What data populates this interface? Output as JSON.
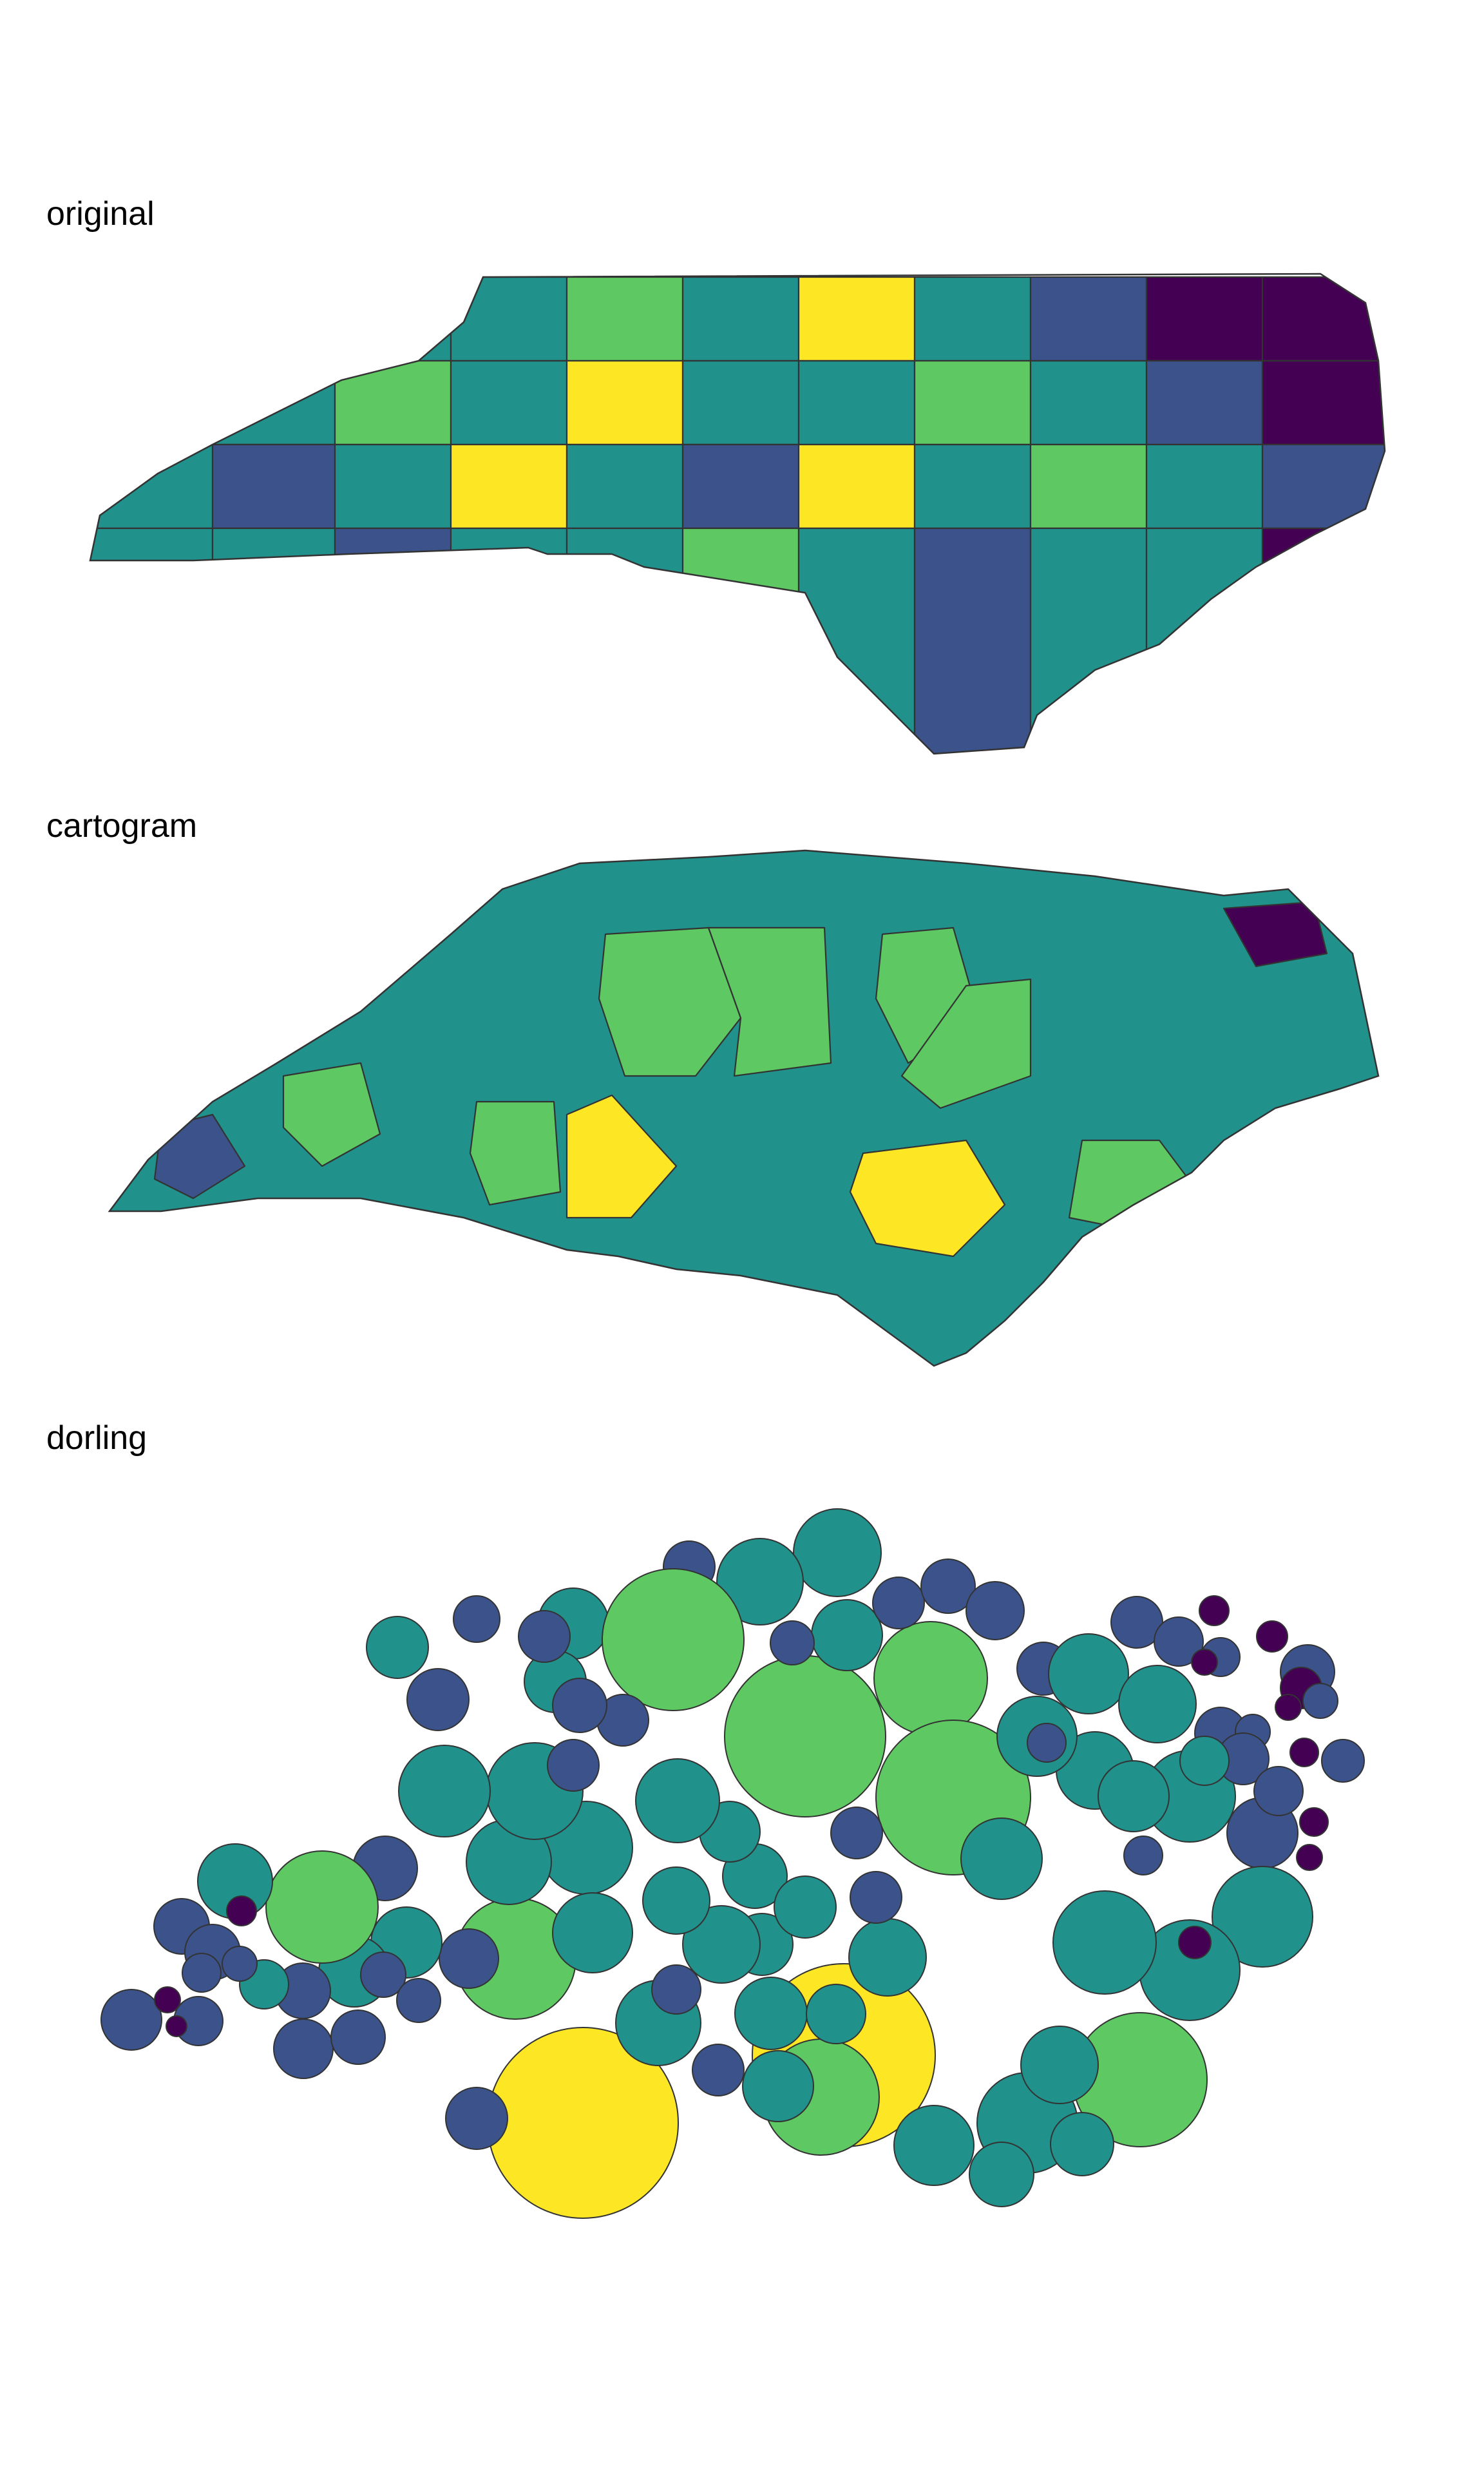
{
  "panels": {
    "original": {
      "title": "original"
    },
    "cartogram": {
      "title": "cartogram"
    },
    "dorling": {
      "title": "dorling"
    }
  },
  "palette": {
    "name": "viridis",
    "colors": [
      "#440154",
      "#3b528b",
      "#21918c",
      "#5ec962",
      "#fde725"
    ]
  },
  "outline_color": "#333333"
}
